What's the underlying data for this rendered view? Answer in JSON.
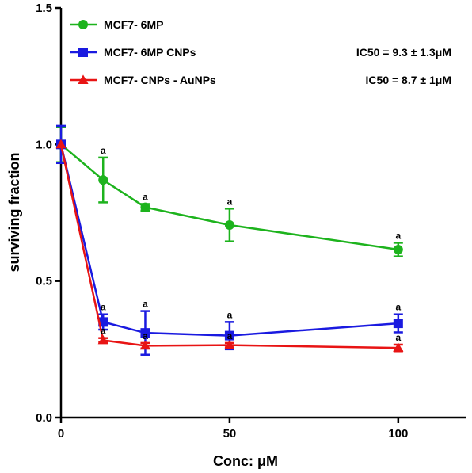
{
  "chart_data": {
    "type": "line",
    "title": "",
    "xlabel": "Conc: μM",
    "ylabel": "surviving fraction",
    "xlim": [
      0,
      120
    ],
    "ylim": [
      0,
      1.5
    ],
    "xticks": [
      "0",
      "50",
      "100"
    ],
    "xtick_values": [
      0,
      50,
      100
    ],
    "yticks": [
      "0.0",
      "0.5",
      "1.0",
      "1.5"
    ],
    "ytick_values": [
      0,
      0.5,
      1.0,
      1.5
    ],
    "grid": false,
    "legend_position": "top-left",
    "series": [
      {
        "name": "MCF7- 6MP",
        "color": "#1db31d",
        "marker": "circle",
        "x": [
          0,
          12.5,
          25,
          50,
          100
        ],
        "y": [
          1.0,
          0.87,
          0.77,
          0.705,
          0.615
        ],
        "err": [
          0.065,
          0.082,
          0.012,
          0.06,
          0.025
        ],
        "sig": [
          null,
          "a",
          "a",
          "a",
          "a"
        ]
      },
      {
        "name": "MCF7- 6MP CNPs",
        "color": "#1a1ae0",
        "marker": "square",
        "x": [
          0,
          12.5,
          25,
          50,
          100
        ],
        "y": [
          1.0,
          0.35,
          0.31,
          0.3,
          0.345
        ],
        "err": [
          0.068,
          0.028,
          0.08,
          0.05,
          0.033
        ],
        "sig": [
          null,
          "a",
          "a",
          "a",
          "a"
        ]
      },
      {
        "name": "MCF7- CNPs - AuNPs",
        "color": "#e81414",
        "marker": "triangle",
        "x": [
          0,
          12.5,
          25,
          50,
          100
        ],
        "y": [
          1.0,
          0.283,
          0.263,
          0.265,
          0.255
        ],
        "err": [
          0.0,
          0.008,
          0.01,
          0.008,
          0.012
        ],
        "sig": [
          null,
          "a",
          "a",
          "a",
          "a"
        ]
      }
    ],
    "annotations": [
      "IC50 = 9.3 ± 1.3μM",
      "IC50 = 8.7 ± 1μM"
    ]
  }
}
